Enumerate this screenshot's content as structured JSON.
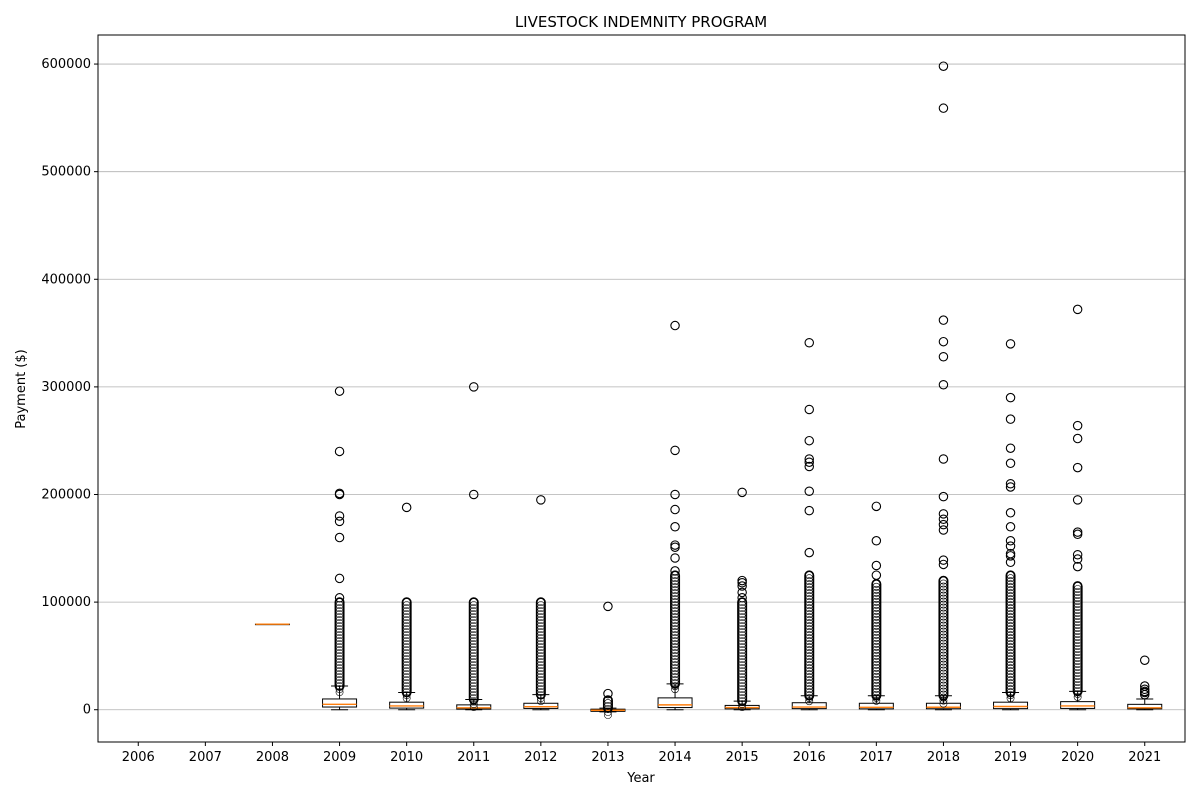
{
  "chart_data": {
    "type": "box",
    "title": "LIVESTOCK INDEMNITY PROGRAM",
    "xlabel": "Year",
    "ylabel": "Payment ($)",
    "ylim": [
      -30000,
      627000
    ],
    "yticks": [
      0,
      100000,
      200000,
      300000,
      400000,
      500000,
      600000
    ],
    "grid": "y",
    "categories": [
      "2006",
      "2007",
      "2008",
      "2009",
      "2010",
      "2011",
      "2012",
      "2013",
      "2014",
      "2015",
      "2016",
      "2017",
      "2018",
      "2019",
      "2020",
      "2021"
    ],
    "boxes": [
      {
        "year": "2006",
        "empty": true
      },
      {
        "year": "2007",
        "empty": true
      },
      {
        "year": "2008",
        "q1": 79500,
        "median": 79500,
        "q3": 79500,
        "whisker_low": 79500,
        "whisker_high": 79500,
        "dense_to": 0,
        "fliers": []
      },
      {
        "year": "2009",
        "q1": 2500,
        "median": 5000,
        "q3": 10000,
        "whisker_low": 0,
        "whisker_high": 22000,
        "dense_to": 100000,
        "fliers": [
          104000,
          122000,
          160000,
          175000,
          180000,
          200000,
          201000,
          240000,
          296000
        ]
      },
      {
        "year": "2010",
        "q1": 1500,
        "median": 3500,
        "q3": 7000,
        "whisker_low": 0,
        "whisker_high": 16000,
        "dense_to": 100000,
        "fliers": [
          188000
        ]
      },
      {
        "year": "2011",
        "q1": 600,
        "median": 1800,
        "q3": 4500,
        "whisker_low": 0,
        "whisker_high": 9500,
        "dense_to": 100000,
        "fliers": [
          200000,
          300000
        ]
      },
      {
        "year": "2012",
        "q1": 1200,
        "median": 2800,
        "q3": 6000,
        "whisker_low": 0,
        "whisker_high": 14000,
        "dense_to": 100000,
        "fliers": [
          195000
        ]
      },
      {
        "year": "2013",
        "q1": -1500,
        "median": -500,
        "q3": 500,
        "whisker_low": -2000,
        "whisker_high": 1500,
        "dense_to": 9000,
        "fliers": [
          15000,
          96000
        ]
      },
      {
        "year": "2014",
        "q1": 2000,
        "median": 4500,
        "q3": 11000,
        "whisker_low": 0,
        "whisker_high": 24000,
        "dense_to": 125000,
        "fliers": [
          129000,
          141000,
          151000,
          153000,
          170000,
          186000,
          200000,
          241000,
          357000
        ]
      },
      {
        "year": "2015",
        "q1": 800,
        "median": 2000,
        "q3": 4000,
        "whisker_low": 0,
        "whisker_high": 8000,
        "dense_to": 100000,
        "fliers": [
          104000,
          109000,
          115000,
          118000,
          120000,
          202000
        ]
      },
      {
        "year": "2016",
        "q1": 1000,
        "median": 2500,
        "q3": 6500,
        "whisker_low": 0,
        "whisker_high": 13000,
        "dense_to": 125000,
        "fliers": [
          146000,
          185000,
          203000,
          226000,
          230000,
          233000,
          250000,
          279000,
          341000
        ]
      },
      {
        "year": "2017",
        "q1": 800,
        "median": 2200,
        "q3": 6000,
        "whisker_low": 0,
        "whisker_high": 13000,
        "dense_to": 117000,
        "fliers": [
          125000,
          134000,
          157000,
          189000
        ]
      },
      {
        "year": "2018",
        "q1": 900,
        "median": 2300,
        "q3": 6000,
        "whisker_low": 0,
        "whisker_high": 13000,
        "dense_to": 120000,
        "fliers": [
          135000,
          139000,
          167000,
          172000,
          177000,
          182000,
          198000,
          233000,
          302000,
          328000,
          342000,
          362000,
          559000,
          598000
        ]
      },
      {
        "year": "2019",
        "q1": 1000,
        "median": 3000,
        "q3": 7000,
        "whisker_low": 0,
        "whisker_high": 16000,
        "dense_to": 125000,
        "fliers": [
          137000,
          143000,
          145000,
          152000,
          157000,
          170000,
          183000,
          207000,
          210000,
          229000,
          243000,
          270000,
          290000,
          340000
        ]
      },
      {
        "year": "2020",
        "q1": 1200,
        "median": 3500,
        "q3": 7500,
        "whisker_low": 0,
        "whisker_high": 17000,
        "dense_to": 115000,
        "fliers": [
          133000,
          140000,
          144000,
          163000,
          165000,
          195000,
          225000,
          252000,
          264000,
          372000
        ]
      },
      {
        "year": "2021",
        "q1": 800,
        "median": 1800,
        "q3": 5000,
        "whisker_low": 0,
        "whisker_high": 10000,
        "dense_to": 0,
        "fliers": [
          14000,
          16000,
          17000,
          19000,
          22000,
          46000
        ]
      }
    ]
  }
}
